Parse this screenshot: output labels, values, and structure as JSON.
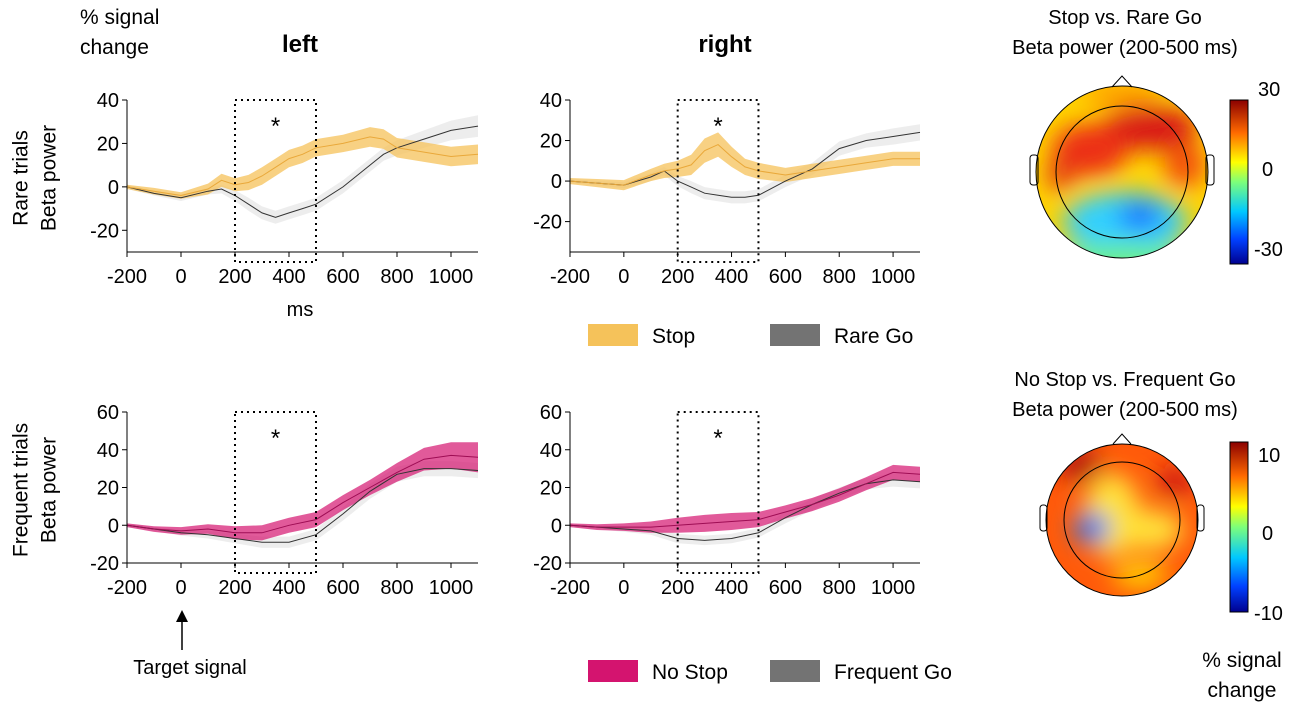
{
  "header": {
    "ylabel_line1": "% signal",
    "ylabel_line2": "change",
    "col_left": "left",
    "col_right": "right"
  },
  "rows": {
    "rare_line1": "Rare trials",
    "rare_line2": "Beta power",
    "freq_line1": "Frequent trials",
    "freq_line2": "Beta power"
  },
  "annotations": {
    "ms": "ms",
    "target": "Target signal",
    "star": "*"
  },
  "legend_rare": [
    {
      "label": "Stop",
      "color": "#f5c25a"
    },
    {
      "label": "Rare Go",
      "color": "#737373"
    }
  ],
  "legend_freq": [
    {
      "label": "No Stop",
      "color": "#d4146f"
    },
    {
      "label": "Frequent Go",
      "color": "#737373"
    }
  ],
  "topos": [
    {
      "title1": "Stop vs. Rare Go",
      "title2": "Beta power (200-500 ms)",
      "ticks": [
        "30",
        "0",
        "-30"
      ],
      "range": [
        -30,
        30
      ]
    },
    {
      "title1": "No Stop vs. Frequent Go",
      "title2": "Beta power (200-500 ms)",
      "ticks": [
        "10",
        "0",
        "-10"
      ],
      "range": [
        -10,
        10
      ]
    }
  ],
  "colorbar_label_line1": "% signal",
  "colorbar_label_line2": "change",
  "chart_data": [
    {
      "type": "line",
      "panel": "rare-left",
      "xlim": [
        -200,
        1100
      ],
      "ylim": [
        -30,
        40
      ],
      "xticks": [
        -200,
        0,
        200,
        400,
        600,
        800,
        1000
      ],
      "yticks": [
        -20,
        0,
        20,
        40
      ],
      "window": [
        200,
        500
      ],
      "significant": true,
      "x": [
        -200,
        -100,
        0,
        100,
        150,
        200,
        250,
        300,
        350,
        400,
        450,
        500,
        600,
        700,
        750,
        800,
        900,
        1000,
        1100
      ],
      "series": [
        {
          "name": "Stop",
          "color": "#f5c25a",
          "mean": [
            0,
            -2,
            -4,
            -1,
            3,
            1,
            2,
            5,
            9,
            13,
            15,
            18,
            20,
            23,
            22,
            18,
            16,
            14,
            15
          ],
          "sem": [
            1,
            1.5,
            1.5,
            2.5,
            3,
            3,
            3.5,
            4,
            4,
            4,
            4,
            4,
            4,
            4.5,
            4.5,
            4.5,
            4.5,
            4.5,
            4.5
          ]
        },
        {
          "name": "Rare Go",
          "color": "#555555",
          "mean": [
            0,
            -3,
            -5,
            -2,
            -1,
            -4,
            -8,
            -12,
            -14,
            -12,
            -10,
            -8,
            0,
            10,
            15,
            18,
            22,
            26,
            28
          ],
          "sem": [
            1,
            1,
            1.5,
            1.5,
            2,
            2.5,
            3,
            3,
            3,
            3,
            3,
            3,
            3,
            3,
            3,
            3.5,
            4,
            4.5,
            5
          ]
        }
      ]
    },
    {
      "type": "line",
      "panel": "rare-right",
      "xlim": [
        -200,
        1100
      ],
      "ylim": [
        -35,
        40
      ],
      "xticks": [
        -200,
        0,
        200,
        400,
        600,
        800,
        1000
      ],
      "yticks": [
        -20,
        0,
        20,
        40
      ],
      "window": [
        200,
        500
      ],
      "significant": true,
      "x": [
        -200,
        -100,
        0,
        100,
        150,
        200,
        250,
        300,
        350,
        400,
        450,
        500,
        600,
        700,
        800,
        900,
        1000,
        1100
      ],
      "series": [
        {
          "name": "Stop",
          "color": "#f5c25a",
          "mean": [
            0,
            -1,
            -2,
            3,
            5,
            6,
            8,
            15,
            18,
            12,
            7,
            5,
            3,
            5,
            7,
            9,
            11,
            11
          ],
          "sem": [
            1.5,
            2,
            2.5,
            3,
            3.5,
            4,
            5,
            6,
            6,
            5,
            4,
            4,
            3.5,
            3.5,
            3.5,
            3.5,
            3.5,
            3.5
          ]
        },
        {
          "name": "Rare Go",
          "color": "#555555",
          "mean": [
            0,
            -1,
            -2,
            2,
            5,
            0,
            -3,
            -6,
            -7,
            -8,
            -8,
            -7,
            0,
            6,
            16,
            20,
            22,
            24
          ],
          "sem": [
            1,
            1,
            1.5,
            2,
            2,
            2.5,
            3,
            3,
            3,
            3,
            3,
            3,
            3,
            3,
            3.5,
            3.5,
            4,
            4
          ]
        }
      ]
    },
    {
      "type": "line",
      "panel": "frequent-left",
      "xlim": [
        -200,
        1100
      ],
      "ylim": [
        -20,
        60
      ],
      "xticks": [
        -200,
        0,
        200,
        400,
        600,
        800,
        1000
      ],
      "yticks": [
        -20,
        0,
        20,
        40,
        60
      ],
      "window": [
        200,
        500
      ],
      "significant": true,
      "x": [
        -200,
        -100,
        0,
        100,
        200,
        300,
        400,
        500,
        600,
        700,
        800,
        900,
        1000,
        1100
      ],
      "series": [
        {
          "name": "No Stop",
          "color": "#d4146f",
          "mean": [
            0,
            -2,
            -3,
            -2,
            -4,
            -4,
            0,
            3,
            12,
            20,
            28,
            35,
            37,
            36
          ],
          "sem": [
            1,
            1.5,
            2,
            2.5,
            3.5,
            4,
            4,
            4,
            4,
            4,
            5,
            6,
            7,
            8
          ]
        },
        {
          "name": "Frequent Go",
          "color": "#555555",
          "mean": [
            0,
            -2,
            -4,
            -5,
            -7,
            -9,
            -9,
            -5,
            6,
            18,
            27,
            30,
            30,
            29
          ],
          "sem": [
            1,
            1,
            1.5,
            2,
            2.5,
            3,
            3,
            3,
            3.5,
            4,
            4,
            4,
            4,
            4
          ]
        }
      ]
    },
    {
      "type": "line",
      "panel": "frequent-right",
      "xlim": [
        -200,
        1100
      ],
      "ylim": [
        -20,
        60
      ],
      "xticks": [
        -200,
        0,
        200,
        400,
        600,
        800,
        1000
      ],
      "yticks": [
        -20,
        0,
        20,
        40,
        60
      ],
      "window": [
        200,
        500
      ],
      "significant": true,
      "x": [
        -200,
        -100,
        0,
        100,
        200,
        300,
        400,
        500,
        600,
        700,
        800,
        900,
        1000,
        1100
      ],
      "series": [
        {
          "name": "No Stop",
          "color": "#d4146f",
          "mean": [
            0,
            -1,
            -1,
            -1,
            0,
            1,
            2,
            3,
            7,
            11,
            16,
            22,
            28,
            27
          ],
          "sem": [
            1,
            1.5,
            2,
            3,
            4,
            4.5,
            4.5,
            4,
            3.5,
            3.5,
            3.5,
            3.5,
            4,
            4
          ]
        },
        {
          "name": "Frequent Go",
          "color": "#555555",
          "mean": [
            0,
            -1,
            -2,
            -3,
            -7,
            -8,
            -7,
            -4,
            4,
            11,
            17,
            22,
            24,
            23
          ],
          "sem": [
            1,
            1,
            1.5,
            2,
            2.5,
            2.5,
            2.5,
            2.5,
            3,
            3,
            3,
            3,
            3.5,
            3.5
          ]
        }
      ]
    }
  ]
}
